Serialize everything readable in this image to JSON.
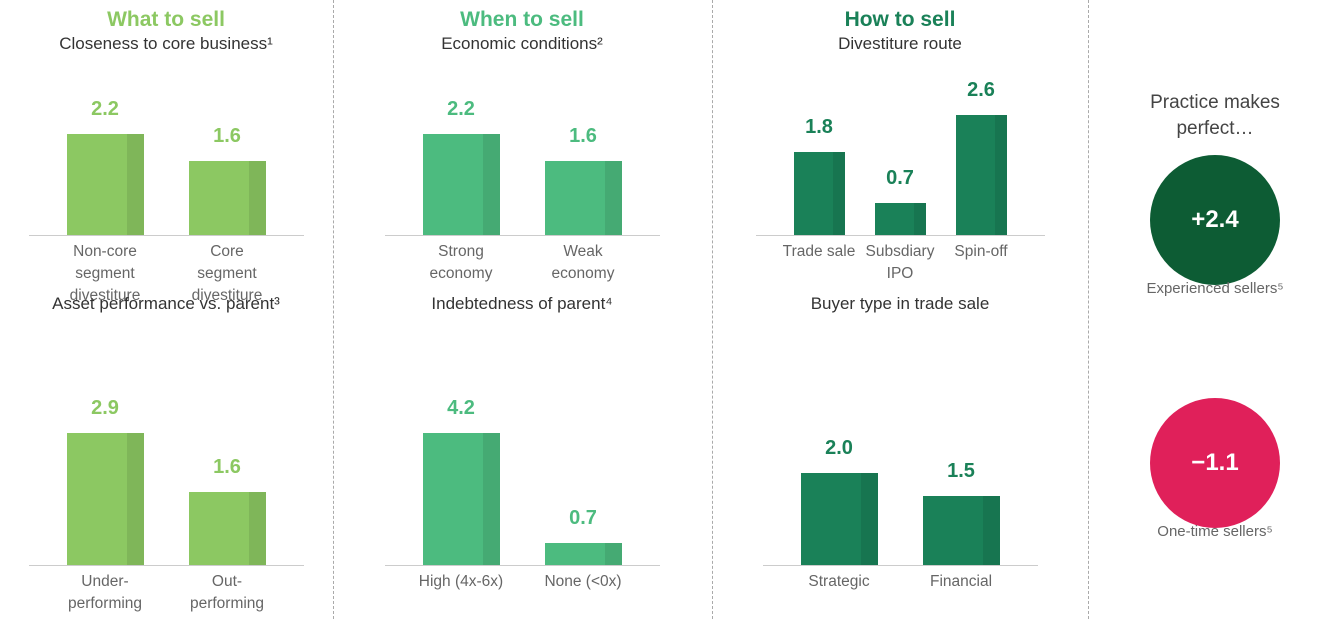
{
  "headings": [
    {
      "text": "What to sell",
      "color": "#8cc862"
    },
    {
      "text": "When to sell",
      "color": "#4cbb7f"
    },
    {
      "text": "How to sell",
      "color": "#1a8158"
    }
  ],
  "chart_data": [
    {
      "type": "bar",
      "title": "Closeness to core business¹",
      "categories": [
        "Non-core segment divestiture",
        "Core segment divestiture"
      ],
      "values": [
        2.2,
        1.6
      ],
      "color": "#8cc862"
    },
    {
      "type": "bar",
      "title": "Asset performance vs. parent³",
      "categories": [
        "Under-performing",
        "Out-performing"
      ],
      "values": [
        2.9,
        1.6
      ],
      "color": "#8cc862"
    },
    {
      "type": "bar",
      "title": "Economic conditions²",
      "categories": [
        "Strong economy",
        "Weak economy"
      ],
      "values": [
        2.2,
        1.6
      ],
      "color": "#4cbb7f"
    },
    {
      "type": "bar",
      "title": "Indebtedness of parent⁴",
      "categories": [
        "High (4x-6x)",
        "None (<0x)"
      ],
      "values": [
        4.2,
        0.7
      ],
      "color": "#4cbb7f"
    },
    {
      "type": "bar",
      "title": "Divestiture route",
      "categories": [
        "Trade sale",
        "Subsdiary IPO",
        "Spin-off"
      ],
      "values": [
        1.8,
        0.7,
        2.6
      ],
      "color": "#1a8158"
    },
    {
      "type": "bar",
      "title": "Buyer type in trade sale",
      "categories": [
        "Strategic",
        "Financial"
      ],
      "values": [
        2.0,
        1.5
      ],
      "value_labels": [
        "2.0",
        "1.5"
      ],
      "color": "#1a8158"
    }
  ],
  "practice": {
    "title": "Practice makes perfect…",
    "groups": [
      {
        "value": 2.4,
        "value_label": "+2.4",
        "label": "Experienced sellers⁵",
        "color": "#0d5c34"
      },
      {
        "value": -1.1,
        "value_label": "−1.1",
        "label": "One-time sellers⁵",
        "color": "#e0205a"
      }
    ]
  }
}
